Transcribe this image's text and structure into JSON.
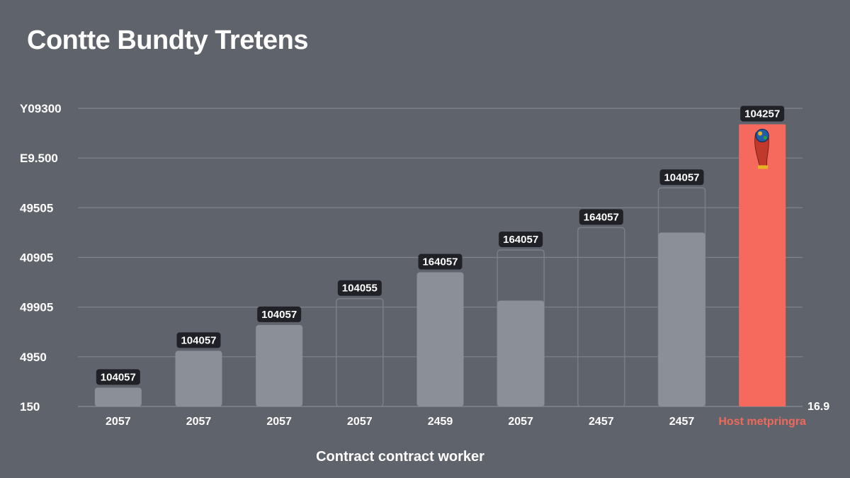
{
  "chart_data": {
    "type": "bar",
    "title": "Contte Bundty Tretens",
    "xlabel": "Contract contract worker",
    "ylabel": "",
    "ylim": [
      0,
      6
    ],
    "ytick_labels": [
      "150",
      "4950",
      "49905",
      "40905",
      "49505",
      "E9.500",
      "Y09300"
    ],
    "categories": [
      "2057",
      "2057",
      "2057",
      "2057",
      "2459",
      "2057",
      "2457",
      "2457",
      "Host metpringra"
    ],
    "values": [
      0.38,
      1.12,
      1.64,
      2.17,
      2.7,
      3.15,
      3.6,
      4.4,
      5.68
    ],
    "inner_values": [
      null,
      null,
      null,
      null,
      null,
      2.13,
      null,
      3.5,
      null
    ],
    "data_labels": [
      "104057",
      "104057",
      "104057",
      "104055",
      "164057",
      "164057",
      "164057",
      "104057",
      "104257"
    ],
    "highlight_index": 8,
    "right_note": "16.9",
    "grid": true,
    "legend": "none",
    "colors": {
      "background": "#5f636b",
      "bar": "#8b8f97",
      "bar_outline": "#7b7f87",
      "highlight": "#f66a5e",
      "grid": "#80848c",
      "label_box": "#1f2126"
    }
  }
}
